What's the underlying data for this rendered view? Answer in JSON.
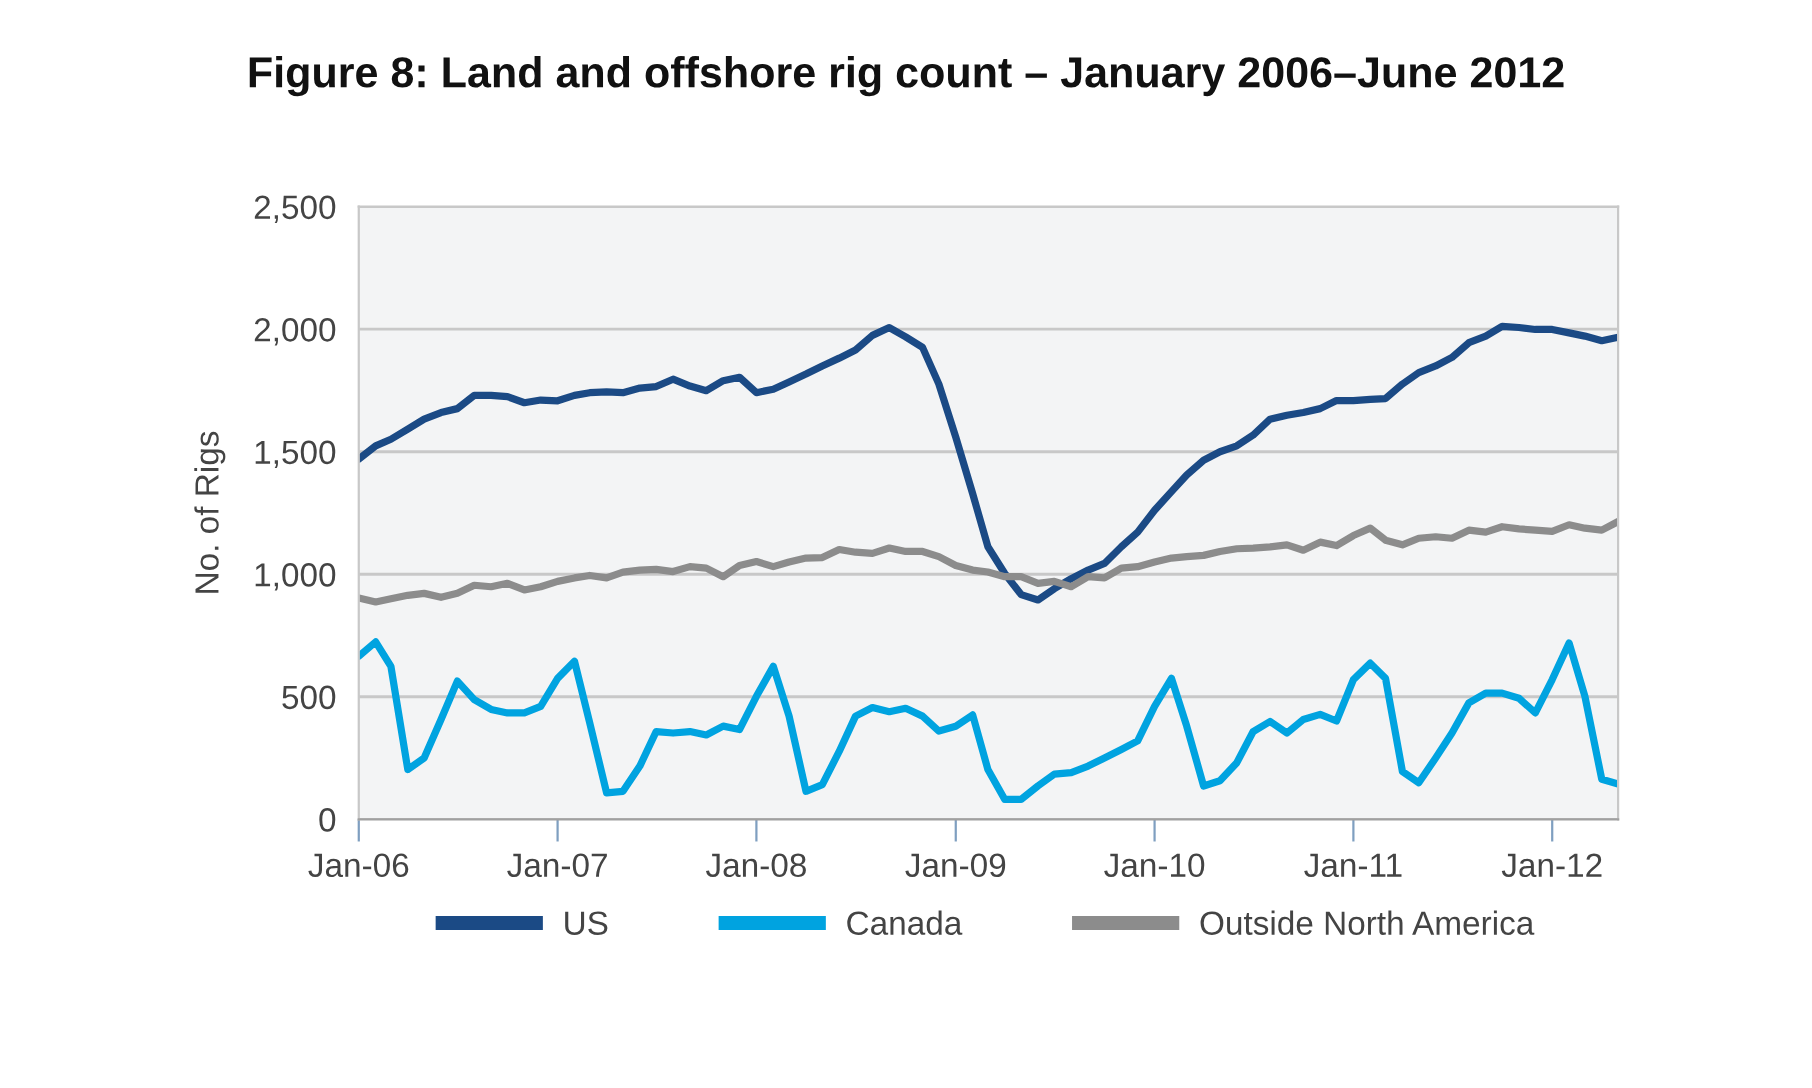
{
  "chart_data": {
    "type": "line",
    "title": "Figure 8: Land and offshore rig count – January 2006–June 2012",
    "ylabel": "No. of Rigs",
    "x": [
      "2006-01",
      "2006-02",
      "2006-03",
      "2006-04",
      "2006-05",
      "2006-06",
      "2006-07",
      "2006-08",
      "2006-09",
      "2006-10",
      "2006-11",
      "2006-12",
      "2007-01",
      "2007-02",
      "2007-03",
      "2007-04",
      "2007-05",
      "2007-06",
      "2007-07",
      "2007-08",
      "2007-09",
      "2007-10",
      "2007-11",
      "2007-12",
      "2008-01",
      "2008-02",
      "2008-03",
      "2008-04",
      "2008-05",
      "2008-06",
      "2008-07",
      "2008-08",
      "2008-09",
      "2008-10",
      "2008-11",
      "2008-12",
      "2009-01",
      "2009-02",
      "2009-03",
      "2009-04",
      "2009-05",
      "2009-06",
      "2009-07",
      "2009-08",
      "2009-09",
      "2009-10",
      "2009-11",
      "2009-12",
      "2010-01",
      "2010-02",
      "2010-03",
      "2010-04",
      "2010-05",
      "2010-06",
      "2010-07",
      "2010-08",
      "2010-09",
      "2010-10",
      "2010-11",
      "2010-12",
      "2011-01",
      "2011-02",
      "2011-03",
      "2011-04",
      "2011-05",
      "2011-06",
      "2011-07",
      "2011-08",
      "2011-09",
      "2011-10",
      "2011-11",
      "2011-12",
      "2012-01",
      "2012-02",
      "2012-03",
      "2012-04",
      "2012-05"
    ],
    "series": [
      {
        "name": "US",
        "color": "#1b4a85",
        "values": [
          1470,
          1524,
          1551,
          1592,
          1633,
          1660,
          1676,
          1730,
          1730,
          1725,
          1700,
          1711,
          1708,
          1730,
          1741,
          1744,
          1741,
          1760,
          1766,
          1796,
          1768,
          1749,
          1790,
          1804,
          1741,
          1755,
          1785,
          1817,
          1850,
          1882,
          1915,
          1975,
          2007,
          1969,
          1926,
          1776,
          1560,
          1329,
          1112,
          1003,
          917,
          895,
          941,
          982,
          1017,
          1044,
          1112,
          1172,
          1261,
          1337,
          1405,
          1465,
          1500,
          1524,
          1568,
          1633,
          1649,
          1660,
          1676,
          1709,
          1709,
          1714,
          1717,
          1776,
          1823,
          1850,
          1885,
          1945,
          1972,
          2012,
          2007,
          1999,
          1999,
          1985,
          1972,
          1953,
          1967
        ]
      },
      {
        "name": "Canada",
        "color": "#00a3e0",
        "values": [
          665,
          724,
          624,
          203,
          250,
          407,
          564,
          488,
          448,
          434,
          434,
          461,
          575,
          645,
          393,
          108,
          114,
          217,
          358,
          352,
          358,
          344,
          380,
          366,
          502,
          624,
          421,
          114,
          141,
          277,
          421,
          456,
          439,
          453,
          421,
          360,
          380,
          426,
          203,
          81,
          81,
          136,
          184,
          190,
          217,
          250,
          285,
          320,
          461,
          575,
          380,
          136,
          157,
          231,
          358,
          399,
          352,
          407,
          428,
          401,
          570,
          637,
          575,
          195,
          149,
          250,
          352,
          475,
          515,
          515,
          494,
          434,
          570,
          719,
          502,
          163,
          144
        ]
      },
      {
        "name": "Outside North America",
        "color": "#8c8c8c",
        "values": [
          903,
          887,
          900,
          914,
          922,
          906,
          922,
          955,
          949,
          963,
          936,
          949,
          971,
          985,
          995,
          985,
          1009,
          1017,
          1020,
          1011,
          1031,
          1025,
          990,
          1036,
          1052,
          1031,
          1050,
          1066,
          1068,
          1101,
          1090,
          1085,
          1107,
          1093,
          1093,
          1072,
          1036,
          1017,
          1009,
          990,
          990,
          963,
          971,
          949,
          990,
          985,
          1025,
          1031,
          1050,
          1066,
          1072,
          1077,
          1093,
          1104,
          1107,
          1112,
          1120,
          1098,
          1131,
          1117,
          1158,
          1188,
          1139,
          1120,
          1147,
          1153,
          1147,
          1180,
          1172,
          1194,
          1185,
          1180,
          1175,
          1202,
          1188,
          1180,
          1215
        ]
      }
    ],
    "xlim": [
      "2006-01",
      "2012-05"
    ],
    "xticks": [
      {
        "value": "2006-01",
        "label": "Jan-06"
      },
      {
        "value": "2007-01",
        "label": "Jan-07"
      },
      {
        "value": "2008-01",
        "label": "Jan-08"
      },
      {
        "value": "2009-01",
        "label": "Jan-09"
      },
      {
        "value": "2010-01",
        "label": "Jan-10"
      },
      {
        "value": "2011-01",
        "label": "Jan-11"
      },
      {
        "value": "2012-01",
        "label": "Jan-12"
      }
    ],
    "ylim": [
      0,
      2500
    ],
    "yticks": [
      0,
      {
        "value": 500,
        "label": "500"
      },
      {
        "value": 1000,
        "label": "1,000"
      },
      {
        "value": 1500,
        "label": "1,500"
      },
      {
        "value": 2000,
        "label": "2,000"
      },
      {
        "value": 2500,
        "label": "2,500"
      }
    ],
    "grid": "y",
    "legend": "bottom",
    "marker": "none",
    "line_style": "solid"
  }
}
